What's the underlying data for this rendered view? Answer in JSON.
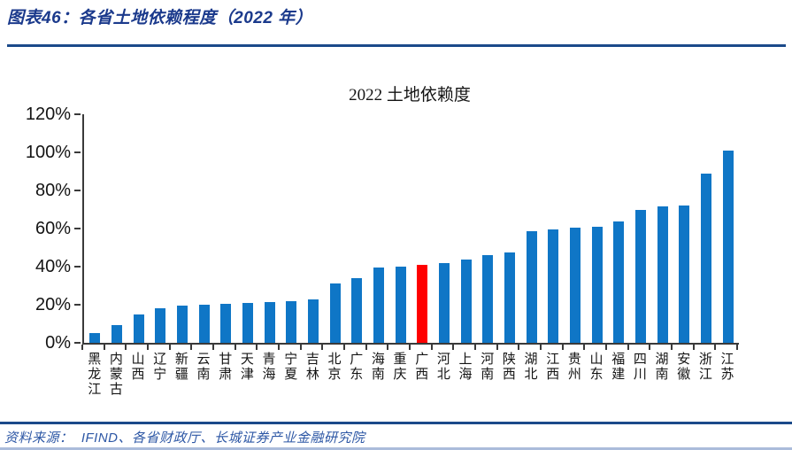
{
  "header": {
    "title": "图表46：各省土地依赖程度（2022 年）"
  },
  "chart_data": {
    "type": "bar",
    "title": "2022 土地依赖度",
    "categories": [
      "黑龙江",
      "内蒙古",
      "山西",
      "辽宁",
      "新疆",
      "云南",
      "甘肃",
      "天津",
      "青海",
      "宁夏",
      "吉林",
      "北京",
      "广东",
      "海南",
      "重庆",
      "广西",
      "河北",
      "上海",
      "河南",
      "陕西",
      "湖北",
      "江西",
      "贵州",
      "山东",
      "福建",
      "四川",
      "湖南",
      "安徽",
      "浙江",
      "江苏"
    ],
    "values": [
      5,
      9.5,
      15,
      18,
      19.5,
      20,
      20.5,
      21,
      21.5,
      22,
      23,
      31,
      34,
      39.5,
      40,
      41,
      42,
      43.5,
      46,
      47.5,
      58.5,
      59.5,
      60.5,
      61,
      63.5,
      70,
      71.5,
      72,
      89,
      101
    ],
    "unit": "%",
    "highlight_category": "广西",
    "highlight_index": 15,
    "y_tick_labels": [
      "0%",
      "20%",
      "40%",
      "60%",
      "80%",
      "100%",
      "120%"
    ],
    "y_tick_values": [
      0,
      20,
      40,
      60,
      80,
      100,
      120
    ],
    "ylim": [
      0,
      120
    ],
    "grid": false,
    "legend": false,
    "xlabel": "",
    "ylabel": ""
  },
  "footer": {
    "source": "资料来源：  IFIND、各省财政厅、长城证券产业金融研究院"
  },
  "colors": {
    "bar_blue": "#0F76C6",
    "highlight_red": "#FF0000",
    "rule_blue": "#1B4A8A",
    "title_blue": "#1B3A8C",
    "source_blue": "#2D57A5"
  }
}
